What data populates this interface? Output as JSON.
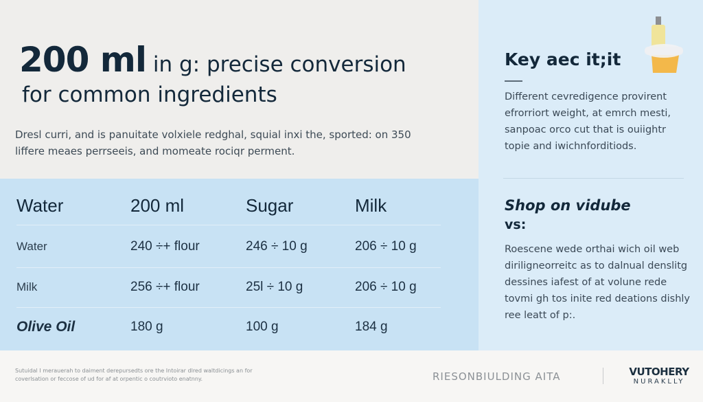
{
  "title": {
    "big": "200 ml",
    "rest": " in g: precise conversion",
    "line2": "for common ingredients"
  },
  "intro": "Dresl curri, and is panuitate volxiele redghal, squial inxi the, sported: on 350 liffere meaes perrseeis, and momeate rociqr perment.",
  "table": {
    "headers": [
      "Water",
      "200 ml",
      "Sugar",
      "Milk"
    ],
    "rows": [
      [
        "Water",
        "240 ÷+ flour",
        "246 ÷ 10 g",
        "206 ÷ 10 g"
      ],
      [
        "Milk",
        "256 ÷+ flour",
        "25l ÷ 10 g",
        "206 ÷ 10 g"
      ],
      [
        "Olive Oil",
        "180 g",
        "100 g",
        "184 g"
      ]
    ]
  },
  "sidebar": {
    "key_heading": "Key aec it;it",
    "key_text": "Different cevredigence provirent efrorriort weight, at emrch mesti, sanpoac orco cut that is ouiightr topie and iwichnforditiods.",
    "shop_heading": "Shop on vidube",
    "shop_sub": "vs:",
    "shop_text": "Roescene wede orthai wich oil web diriligneorreitc as to dalnual denslitg dessines iafest of at volune rede tovmi gh tos inite red deations dishly ree leatt of p:."
  },
  "footer": {
    "note": "Sutuidal I merauerah to daiment derepursedts ore the Intoirar dlred waltdicings an for coverlsation or feccose of ud for af at orpentic o coutrvioto enatnny.",
    "brand_text": "RIESONBIULDING AITA",
    "logo_top": "VUTOHERY",
    "logo_bottom": "NURAKLLY"
  },
  "colors": {
    "navy": "#13283a",
    "table_bg": "#c8e2f4",
    "side_bg": "#dbecf8"
  }
}
